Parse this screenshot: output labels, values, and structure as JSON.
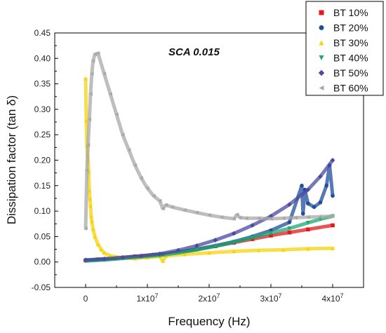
{
  "chart_data": {
    "type": "scatter",
    "title": "",
    "annotation": "SCA 0.015",
    "xlabel": "Frequency (Hz)",
    "ylabel": "Dissipation factor (tan δ)",
    "xlim": [
      -5000000,
      45000000
    ],
    "ylim": [
      -0.05,
      0.45
    ],
    "x_ticks": [
      0,
      10000000,
      20000000,
      30000000,
      40000000
    ],
    "x_tick_labels": [
      "0",
      "1x10",
      "2x10",
      "3x10",
      "4x10"
    ],
    "x_tick_exponent": "7",
    "y_ticks": [
      -0.05,
      0.0,
      0.05,
      0.1,
      0.15,
      0.2,
      0.25,
      0.3,
      0.35,
      0.4,
      0.45
    ],
    "y_tick_labels": [
      "-0.05",
      "0.00",
      "0.05",
      "0.10",
      "0.15",
      "0.20",
      "0.25",
      "0.30",
      "0.35",
      "0.40",
      "0.45"
    ],
    "legend_position": "top-right",
    "series": [
      {
        "name": "BT 10%",
        "marker": "square",
        "color": "#e31a1c",
        "x": [
          0,
          2000000,
          5000000,
          8000000,
          11000000,
          12500000,
          15000000,
          18000000,
          21000000,
          24000000,
          27000000,
          30000000,
          33000000,
          36000000,
          40000000
        ],
        "y": [
          0.003,
          0.005,
          0.008,
          0.011,
          0.014,
          0.015,
          0.019,
          0.025,
          0.031,
          0.038,
          0.045,
          0.052,
          0.058,
          0.064,
          0.072
        ]
      },
      {
        "name": "BT 20%",
        "marker": "circle",
        "color": "#1f4e9c",
        "x": [
          0,
          3000000,
          6000000,
          9000000,
          12000000,
          15000000,
          18000000,
          21000000,
          24000000,
          27000000,
          30000000,
          33000000,
          35000000,
          35200000,
          35500000,
          36000000,
          37000000,
          38000000,
          39000000,
          39500000,
          40000000
        ],
        "y": [
          0.003,
          0.005,
          0.008,
          0.011,
          0.014,
          0.019,
          0.025,
          0.032,
          0.04,
          0.05,
          0.062,
          0.078,
          0.15,
          0.095,
          0.142,
          0.115,
          0.108,
          0.117,
          0.15,
          0.19,
          0.13
        ]
      },
      {
        "name": "BT 30%",
        "marker": "triangle-up",
        "color": "#f5d40c",
        "x": [
          0,
          100000,
          200000,
          300000,
          400000,
          500000,
          600000,
          700000,
          800000,
          900000,
          1000000,
          1200000,
          1500000,
          2000000,
          2500000,
          3000000,
          4000000,
          6000000,
          8000000,
          10000000,
          12000000,
          12500000,
          13000000,
          16000000,
          20000000,
          24000000,
          28000000,
          32000000,
          36000000,
          40000000
        ],
        "y": [
          0.36,
          0.278,
          0.229,
          0.21,
          0.2,
          0.177,
          0.14,
          0.124,
          0.11,
          0.09,
          0.08,
          0.065,
          0.05,
          0.035,
          0.025,
          0.018,
          0.012,
          0.008,
          0.007,
          0.009,
          0.011,
          0.002,
          0.012,
          0.015,
          0.018,
          0.021,
          0.023,
          0.024,
          0.026,
          0.027
        ]
      },
      {
        "name": "BT 40%",
        "marker": "triangle-down",
        "color": "#1aaa6e",
        "x": [
          0,
          3000000,
          6000000,
          9000000,
          12000000,
          15000000,
          18000000,
          21000000,
          24000000,
          27000000,
          30000000,
          33000000,
          36000000,
          38000000,
          40000000
        ],
        "y": [
          0.002,
          0.004,
          0.007,
          0.01,
          0.013,
          0.018,
          0.024,
          0.031,
          0.039,
          0.048,
          0.057,
          0.066,
          0.077,
          0.084,
          0.09
        ]
      },
      {
        "name": "BT 50%",
        "marker": "diamond",
        "color": "#4a4aa0",
        "x": [
          0,
          3000000,
          6000000,
          9000000,
          12000000,
          15000000,
          18000000,
          21000000,
          24000000,
          27000000,
          30000000,
          33000000,
          36000000,
          38000000,
          40000000
        ],
        "y": [
          0.004,
          0.006,
          0.009,
          0.012,
          0.016,
          0.023,
          0.032,
          0.043,
          0.056,
          0.072,
          0.09,
          0.113,
          0.142,
          0.168,
          0.2
        ]
      },
      {
        "name": "BT 60%",
        "marker": "triangle-left",
        "color": "#a8a8a8",
        "x": [
          0,
          200000,
          400000,
          600000,
          800000,
          1000000,
          1200000,
          1500000,
          2000000,
          3000000,
          4000000,
          5000000,
          6000000,
          7000000,
          8000000,
          9000000,
          10000000,
          11000000,
          12000000,
          12500000,
          13000000,
          14000000,
          16000000,
          18000000,
          20000000,
          22000000,
          24000000,
          24500000,
          25000000,
          26000000,
          28000000,
          30000000,
          32000000,
          34000000,
          36000000,
          38000000,
          40000000
        ],
        "y": [
          0.066,
          0.18,
          0.23,
          0.28,
          0.33,
          0.37,
          0.395,
          0.408,
          0.41,
          0.37,
          0.33,
          0.29,
          0.25,
          0.22,
          0.19,
          0.165,
          0.145,
          0.13,
          0.12,
          0.105,
          0.112,
          0.108,
          0.102,
          0.097,
          0.092,
          0.088,
          0.085,
          0.093,
          0.087,
          0.086,
          0.086,
          0.085,
          0.086,
          0.087,
          0.088,
          0.089,
          0.09
        ]
      }
    ]
  }
}
